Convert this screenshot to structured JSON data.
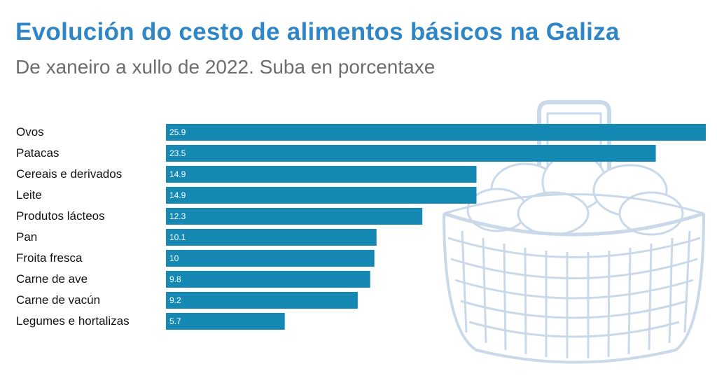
{
  "title": "Evolución do cesto de alimentos básicos na Galiza",
  "subtitle": "De xaneiro a xullo de 2022. Suba en porcentaxe",
  "colors": {
    "bar": "#1589b3",
    "title": "#2f86c6",
    "subtitle": "#6d6d6d",
    "illustration": "#c9d9ea"
  },
  "illustration": "basket-of-potatoes",
  "chart_data": {
    "type": "bar",
    "orientation": "horizontal",
    "title": "Evolución do cesto de alimentos básicos na Galiza",
    "subtitle": "De xaneiro a xullo de 2022. Suba en porcentaxe",
    "xlabel": "",
    "ylabel": "",
    "xlim": [
      0,
      25.9
    ],
    "grid": false,
    "legend": "none",
    "categories": [
      "Ovos",
      "Patacas",
      "Cereais e derivados",
      "Leite",
      "Produtos lácteos",
      "Pan",
      "Froita fresca",
      "Carne de ave",
      "Carne de vacún",
      "Legumes e hortalizas"
    ],
    "values": [
      25.9,
      23.5,
      14.9,
      14.9,
      12.3,
      10.1,
      10,
      9.8,
      9.2,
      5.7
    ],
    "value_labels": [
      "25.9",
      "23.5",
      "14.9",
      "14.9",
      "12.3",
      "10.1",
      "10",
      "9.8",
      "9.2",
      "5.7"
    ]
  }
}
